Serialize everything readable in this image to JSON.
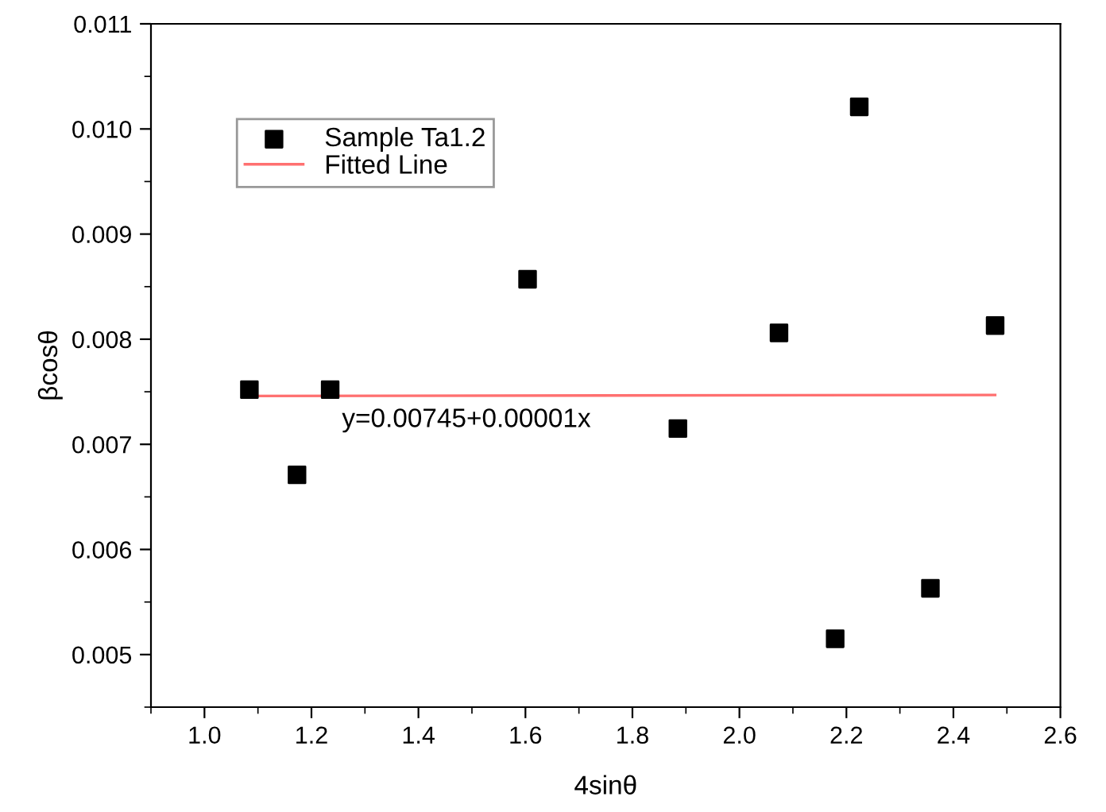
{
  "chart_data": {
    "type": "scatter",
    "xlabel": "4sinθ",
    "ylabel": "βcosθ",
    "series": [
      {
        "name": "Sample Ta1.2",
        "color": "#000000",
        "marker": "square",
        "x": [
          1.084,
          1.173,
          1.235,
          1.604,
          1.885,
          2.074,
          2.179,
          2.224,
          2.357,
          2.478
        ],
        "values": [
          0.00752,
          0.00671,
          0.00752,
          0.00857,
          0.00715,
          0.00806,
          0.00515,
          0.01021,
          0.00563,
          0.00813
        ]
      },
      {
        "name": "Fitted Line",
        "type": "line",
        "color": "#ff7070",
        "marker": "none",
        "x": [
          1.084,
          2.478
        ],
        "values": [
          0.00746,
          0.00747
        ]
      }
    ],
    "annotations": [
      "y=0.00745+0.00001x"
    ],
    "xlim": [
      0.9,
      2.6
    ],
    "xticks": [
      {
        "value": 1,
        "label": "1.0"
      },
      1.2,
      1.4,
      1.6,
      1.8,
      {
        "value": 2,
        "label": "2.0"
      },
      2.2,
      2.4,
      2.6
    ],
    "ylim": [
      0.0045,
      0.011
    ],
    "yticks": [
      0.005,
      0.006,
      0.007,
      0.008,
      0.009,
      {
        "value": 0.01,
        "label": "0.010"
      },
      0.011
    ],
    "grid": false,
    "legend": "top left"
  }
}
